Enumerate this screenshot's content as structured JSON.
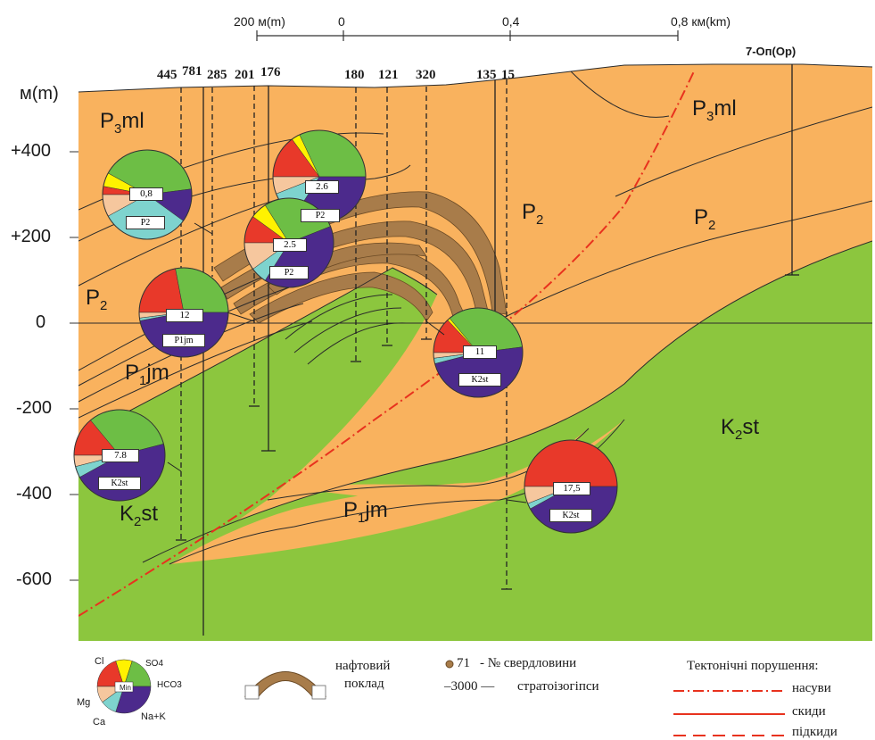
{
  "colors": {
    "orange": "#F9B25E",
    "green": "#8CC63E",
    "oil": "#A87C4A",
    "thrust": "#E8321E",
    "cl": "#E8392A",
    "so4": "#FFF200",
    "hco3": "#6DBE45",
    "nak": "#4C2A8C",
    "ca": "#7ED3CE",
    "mg": "#F6C79E"
  },
  "scale_bar": {
    "left": "200 м(m)",
    "zero": "0",
    "mid": "0,4",
    "right": "0,8 км(km)"
  },
  "axis": {
    "unit": "м(m)",
    "ticks": [
      "+400",
      "+200",
      "0",
      "-200",
      "-400",
      "-600"
    ]
  },
  "wells": [
    "445",
    "781",
    "285",
    "201",
    "176",
    "180",
    "121",
    "320",
    "135",
    "15",
    "7-Оп(Ор)"
  ],
  "strata": {
    "p3ml_left": {
      "base": "P",
      "sub": "3",
      "tail": "ml"
    },
    "p3ml_right": {
      "base": "P",
      "sub": "3",
      "tail": "ml"
    },
    "p2_left": {
      "base": "P",
      "sub": "2",
      "tail": ""
    },
    "p2_center": {
      "base": "P",
      "sub": "2",
      "tail": ""
    },
    "p2_right": {
      "base": "P",
      "sub": "2",
      "tail": ""
    },
    "p1jm_left": {
      "base": "P",
      "sub": "1",
      "tail": "jm"
    },
    "p1jm_bottom": {
      "base": "P",
      "sub": "1",
      "tail": "jm"
    },
    "k2st_left": {
      "base": "K",
      "sub": "2",
      "tail": "st"
    },
    "k2st_right": {
      "base": "K",
      "sub": "2",
      "tail": "st"
    }
  },
  "pies": [
    {
      "value": "0,8",
      "age": "P2",
      "fractions": {
        "cl": 0.03,
        "so4": 0.05,
        "hco3": 0.4,
        "nak": 0.12,
        "ca": 0.32,
        "mg": 0.08
      }
    },
    {
      "value": "2.6",
      "age": "P2",
      "fractions": {
        "cl": 0.15,
        "so4": 0.03,
        "hco3": 0.32,
        "nak": 0.34,
        "ca": 0.1,
        "mg": 0.06
      }
    },
    {
      "value": "2.5",
      "age": "P2",
      "fractions": {
        "cl": 0.1,
        "so4": 0.06,
        "hco3": 0.28,
        "nak": 0.4,
        "ca": 0.06,
        "mg": 0.1
      }
    },
    {
      "value": "12",
      "age": "P1jm",
      "fractions": {
        "cl": 0.22,
        "so4": 0.0,
        "hco3": 0.28,
        "nak": 0.47,
        "ca": 0.01,
        "mg": 0.02
      }
    },
    {
      "value": "11",
      "age": "K2st",
      "fractions": {
        "cl": 0.13,
        "so4": 0.01,
        "hco3": 0.34,
        "nak": 0.48,
        "ca": 0.02,
        "mg": 0.02
      }
    },
    {
      "value": "7.8",
      "age": "K2st",
      "fractions": {
        "cl": 0.14,
        "so4": 0.0,
        "hco3": 0.32,
        "nak": 0.46,
        "ca": 0.04,
        "mg": 0.04
      }
    },
    {
      "value": "17,5",
      "age": "K2st",
      "fractions": {
        "cl": 0.5,
        "so4": 0.0,
        "hco3": 0.0,
        "nak": 0.42,
        "ca": 0.02,
        "mg": 0.06
      }
    }
  ],
  "legend": {
    "pie": {
      "cl": "Cl",
      "so4": "SO4",
      "hco3": "HCO3",
      "mg": "Mg",
      "ca": "Ca",
      "nak": "Na+K",
      "center": "Min"
    },
    "oil_line1": "нафтовий",
    "oil_line2": "поклад",
    "well_example": "71",
    "well_text": "- № свердловини",
    "isoline_example": "–3000 —",
    "isoline_text": "стратоізогіпси",
    "tectonic_title": "Тектонічні порушення:",
    "thrust": "насуви",
    "fault": "скиди",
    "underthrust": "підкиди"
  }
}
